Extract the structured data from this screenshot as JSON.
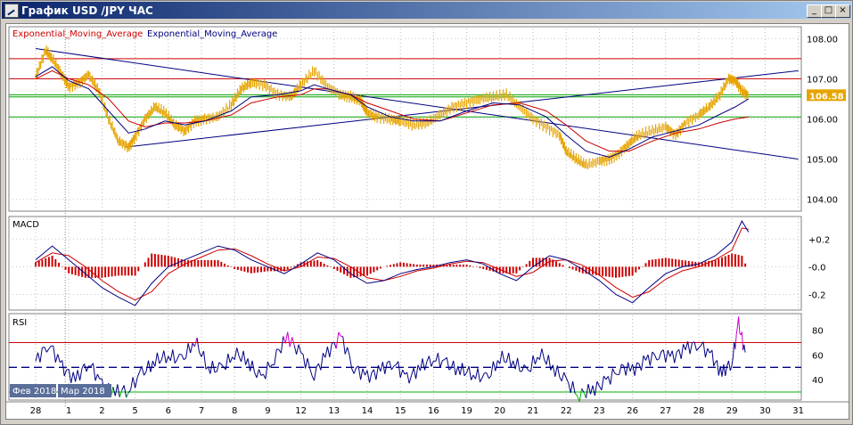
{
  "window": {
    "title": "График USD /JPY  ЧАС",
    "buttons": {
      "minimize": "_",
      "maximize": "□",
      "close": "×"
    }
  },
  "colors": {
    "price": "#e6a400",
    "ema_red": "#cc0000",
    "ema_navy": "#000080",
    "level_red": "#cc0000",
    "level_green": "#00a000",
    "trend_navy": "#000080",
    "rsi_line": "#000080",
    "rsi_overbought": "#cc00cc",
    "rsi_oversold": "#00b000",
    "current_price_bg": "#e6a400"
  },
  "chart_data": [
    {
      "type": "line",
      "panel": "price",
      "legend": [
        {
          "label": "Exponential_Moving_Average",
          "color": "#cc0000"
        },
        {
          "label": "Exponential_Moving_Average",
          "color": "#000080"
        }
      ],
      "x_tick_labels": [
        "28",
        "1",
        "2",
        "5",
        "6",
        "7",
        "8",
        "9",
        "12",
        "13",
        "14",
        "15",
        "16",
        "19",
        "20",
        "21",
        "22",
        "23",
        "26",
        "27",
        "28",
        "29",
        "30",
        "31"
      ],
      "month_labels": [
        "Фев 2018",
        "Мар 2018"
      ],
      "y_tick_labels": [
        "108.00",
        "107.00",
        "106.00",
        "105.00",
        "104.00"
      ],
      "ylim": [
        103.75,
        108.25
      ],
      "current_price_label": "106.58",
      "current_price": 106.58,
      "x_day_index_range": [
        0,
        23
      ],
      "series": [
        {
          "role": "price",
          "x": [
            0,
            0.3,
            0.5,
            0.8,
            1.0,
            1.3,
            1.6,
            1.9,
            2.2,
            2.5,
            2.8,
            3.0,
            3.3,
            3.6,
            3.9,
            4.2,
            4.5,
            4.8,
            5.1,
            5.5,
            5.9,
            6.2,
            6.5,
            6.9,
            7.3,
            7.7,
            8.0,
            8.4,
            8.8,
            9.2,
            9.5,
            9.8,
            10.0,
            10.3,
            10.7,
            11.0,
            11.4,
            11.8,
            12.2,
            12.6,
            13.0,
            13.4,
            13.8,
            14.2,
            14.6,
            15.0,
            15.4,
            15.8,
            16.0,
            16.3,
            16.6,
            17.0,
            17.3,
            17.6,
            17.9,
            18.2,
            18.6,
            19.0,
            19.3,
            19.6,
            20.0,
            20.3,
            20.6,
            20.9,
            21.1,
            21.3,
            21.5
          ],
          "values": [
            107.05,
            107.7,
            107.5,
            107.1,
            106.8,
            106.9,
            107.1,
            106.7,
            106.0,
            105.45,
            105.3,
            105.55,
            106.0,
            106.3,
            106.15,
            105.85,
            105.7,
            105.95,
            106.0,
            106.05,
            106.35,
            106.75,
            106.9,
            106.85,
            106.6,
            106.55,
            106.85,
            107.2,
            106.8,
            106.6,
            106.55,
            106.45,
            106.15,
            106.05,
            106.0,
            105.95,
            105.85,
            105.9,
            106.1,
            106.3,
            106.4,
            106.5,
            106.55,
            106.6,
            106.3,
            106.0,
            105.8,
            105.6,
            105.2,
            105.0,
            104.85,
            104.95,
            105.0,
            105.15,
            105.4,
            105.6,
            105.7,
            105.8,
            105.6,
            105.9,
            106.1,
            106.3,
            106.55,
            107.0,
            106.95,
            106.7,
            106.58
          ]
        },
        {
          "role": "ema_red",
          "x": [
            0,
            0.5,
            1.0,
            1.6,
            2.2,
            2.8,
            3.3,
            3.9,
            4.5,
            5.1,
            5.9,
            6.5,
            7.3,
            8.0,
            8.4,
            8.8,
            9.5,
            10.0,
            10.7,
            11.4,
            12.2,
            13.0,
            13.8,
            14.6,
            15.4,
            16.0,
            16.6,
            17.3,
            17.9,
            18.6,
            19.3,
            20.0,
            20.6,
            21.1,
            21.5
          ],
          "values": [
            107.0,
            107.2,
            107.0,
            106.85,
            106.5,
            105.95,
            105.8,
            105.9,
            105.9,
            105.95,
            106.1,
            106.4,
            106.55,
            106.6,
            106.75,
            106.75,
            106.6,
            106.4,
            106.2,
            106.0,
            105.95,
            106.15,
            106.35,
            106.4,
            106.2,
            105.85,
            105.45,
            105.2,
            105.2,
            105.45,
            105.65,
            105.75,
            105.9,
            106.0,
            106.05
          ]
        },
        {
          "role": "ema_navy",
          "x": [
            0,
            0.5,
            1.0,
            1.6,
            2.2,
            2.8,
            3.3,
            3.9,
            4.5,
            5.1,
            5.9,
            6.5,
            7.3,
            8.0,
            8.4,
            8.8,
            9.5,
            10.0,
            10.7,
            11.4,
            12.2,
            13.0,
            13.8,
            14.6,
            15.4,
            16.0,
            16.6,
            17.3,
            17.9,
            18.6,
            19.3,
            20.0,
            20.6,
            21.1,
            21.5
          ],
          "values": [
            107.05,
            107.3,
            106.95,
            106.75,
            106.2,
            105.65,
            105.75,
            105.95,
            105.85,
            105.95,
            106.2,
            106.55,
            106.6,
            106.7,
            106.85,
            106.75,
            106.6,
            106.3,
            106.05,
            105.95,
            105.95,
            106.2,
            106.4,
            106.35,
            106.05,
            105.6,
            105.2,
            105.05,
            105.25,
            105.55,
            105.7,
            105.85,
            106.1,
            106.3,
            106.5
          ]
        }
      ],
      "horizontal_levels": [
        {
          "value": 107.5,
          "color": "#cc0000"
        },
        {
          "value": 107.0,
          "color": "#cc0000"
        },
        {
          "value": 106.6,
          "color": "#00a000"
        },
        {
          "value": 106.55,
          "color": "#00a000"
        },
        {
          "value": 106.05,
          "color": "#00a000"
        }
      ],
      "trendlines": [
        {
          "from": [
            0,
            107.75
          ],
          "to": [
            23,
            105.0
          ],
          "color": "#000080"
        },
        {
          "from": [
            2.7,
            105.3
          ],
          "to": [
            23,
            107.2
          ],
          "color": "#000080"
        }
      ]
    },
    {
      "type": "line",
      "panel": "macd",
      "title": "MACD",
      "y_tick_labels": [
        "+0.2",
        "-0.0",
        "-0.2"
      ],
      "ylim": [
        -0.3,
        0.35
      ],
      "series": [
        {
          "role": "macd_line",
          "x": [
            0,
            0.5,
            1.0,
            1.5,
            2.0,
            2.5,
            3.0,
            3.5,
            4.0,
            4.5,
            5.0,
            5.5,
            6.0,
            6.5,
            7.0,
            7.5,
            8.0,
            8.5,
            9.0,
            9.5,
            10.0,
            10.5,
            11.0,
            11.5,
            12.0,
            12.5,
            13.0,
            13.5,
            14.0,
            14.5,
            15.0,
            15.5,
            16.0,
            16.5,
            17.0,
            17.5,
            18.0,
            18.5,
            19.0,
            19.5,
            20.0,
            20.5,
            21.0,
            21.3,
            21.5
          ],
          "values": [
            0.05,
            0.15,
            0.05,
            -0.05,
            -0.15,
            -0.22,
            -0.28,
            -0.12,
            0.0,
            0.05,
            0.1,
            0.15,
            0.12,
            0.05,
            0.0,
            -0.05,
            0.02,
            0.1,
            0.05,
            -0.05,
            -0.12,
            -0.1,
            -0.05,
            -0.02,
            0.0,
            0.03,
            0.05,
            0.02,
            -0.05,
            -0.1,
            0.0,
            0.08,
            0.05,
            -0.02,
            -0.1,
            -0.2,
            -0.26,
            -0.15,
            -0.05,
            0.0,
            0.02,
            0.08,
            0.18,
            0.33,
            0.25
          ]
        },
        {
          "role": "signal_line",
          "x": [
            0,
            0.5,
            1.0,
            1.5,
            2.0,
            2.5,
            3.0,
            3.5,
            4.0,
            4.5,
            5.0,
            5.5,
            6.0,
            6.5,
            7.0,
            7.5,
            8.0,
            8.5,
            9.0,
            9.5,
            10.0,
            10.5,
            11.0,
            11.5,
            12.0,
            12.5,
            13.0,
            13.5,
            14.0,
            14.5,
            15.0,
            15.5,
            16.0,
            16.5,
            17.0,
            17.5,
            18.0,
            18.5,
            19.0,
            19.5,
            20.0,
            20.5,
            21.0,
            21.3,
            21.5
          ],
          "values": [
            0.03,
            0.1,
            0.08,
            0.0,
            -0.1,
            -0.18,
            -0.24,
            -0.18,
            -0.05,
            0.02,
            0.07,
            0.12,
            0.13,
            0.08,
            0.02,
            -0.03,
            0.0,
            0.07,
            0.06,
            0.0,
            -0.08,
            -0.1,
            -0.07,
            -0.03,
            -0.01,
            0.02,
            0.04,
            0.03,
            -0.02,
            -0.07,
            -0.04,
            0.04,
            0.05,
            0.01,
            -0.06,
            -0.15,
            -0.22,
            -0.18,
            -0.09,
            -0.03,
            0.0,
            0.05,
            0.12,
            0.28,
            0.27
          ]
        }
      ]
    },
    {
      "type": "line",
      "panel": "rsi",
      "title": "RSI",
      "y_tick_labels": [
        "80",
        "60",
        "40"
      ],
      "ylim": [
        25,
        92
      ],
      "levels": [
        {
          "value": 70,
          "color": "#cc0000",
          "style": "solid"
        },
        {
          "value": 50,
          "color": "#000080",
          "style": "dashed"
        },
        {
          "value": 30,
          "color": "#00b000",
          "style": "solid"
        }
      ],
      "series": [
        {
          "role": "rsi",
          "x": [
            0,
            0.4,
            0.8,
            1.2,
            1.6,
            2.0,
            2.4,
            2.8,
            3.2,
            3.6,
            4.0,
            4.4,
            4.8,
            5.2,
            5.6,
            6.0,
            6.4,
            6.8,
            7.2,
            7.6,
            8.0,
            8.4,
            8.8,
            9.2,
            9.6,
            10.0,
            10.4,
            10.8,
            11.2,
            11.6,
            12.0,
            12.4,
            12.8,
            13.2,
            13.6,
            14.0,
            14.4,
            14.8,
            15.2,
            15.6,
            16.0,
            16.4,
            16.8,
            17.2,
            17.6,
            18.0,
            18.4,
            18.8,
            19.2,
            19.6,
            20.0,
            20.4,
            20.7,
            21.0,
            21.2,
            21.4
          ],
          "values": [
            55,
            70,
            50,
            40,
            55,
            35,
            30,
            32,
            45,
            55,
            60,
            55,
            72,
            50,
            48,
            62,
            55,
            40,
            58,
            75,
            60,
            45,
            62,
            75,
            50,
            42,
            48,
            55,
            40,
            50,
            58,
            52,
            48,
            45,
            40,
            58,
            55,
            45,
            62,
            50,
            38,
            28,
            32,
            38,
            50,
            48,
            55,
            62,
            58,
            65,
            70,
            58,
            45,
            55,
            85,
            62
          ]
        }
      ]
    }
  ]
}
